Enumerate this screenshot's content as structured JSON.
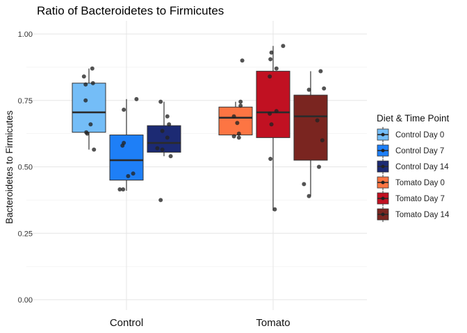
{
  "chart_data": {
    "type": "box",
    "title": "Ratio of Bacteroidetes to Firmicutes",
    "xlabel": "",
    "ylabel": "Bacteroidetes to Firmicutes",
    "categories": [
      "Control",
      "Tomato"
    ],
    "ylim": [
      -0.03,
      1.04
    ],
    "yticks": [
      0.0,
      0.25,
      0.5,
      0.75,
      1.0
    ],
    "ytick_labels": [
      "0.00",
      "0.25",
      "0.50",
      "0.75",
      "1.00"
    ],
    "grid": true,
    "legend": {
      "title": "Diet & Time Point",
      "position": "right"
    },
    "series": [
      {
        "name": "Control Day 0",
        "category": "Control",
        "slot": 0,
        "color": "#74bdf7",
        "q1": 0.63,
        "median": 0.705,
        "q3": 0.815,
        "whisker_low": 0.565,
        "whisker_high": 0.87,
        "points": [
          [
            0.1,
            0.87
          ],
          [
            -0.15,
            0.84
          ],
          [
            -0.1,
            0.81
          ],
          [
            0.12,
            0.815
          ],
          [
            -0.1,
            0.75
          ],
          [
            0.05,
            0.66
          ],
          [
            -0.08,
            0.63
          ],
          [
            -0.05,
            0.625
          ],
          [
            0.15,
            0.565
          ]
        ]
      },
      {
        "name": "Control Day 7",
        "category": "Control",
        "slot": 1,
        "color": "#1e7ff7",
        "q1": 0.45,
        "median": 0.525,
        "q3": 0.62,
        "whisker_low": 0.41,
        "whisker_high": 0.755,
        "points": [
          [
            0.3,
            0.755
          ],
          [
            -0.08,
            0.715
          ],
          [
            -0.08,
            0.59
          ],
          [
            -0.12,
            0.58
          ],
          [
            0.2,
            0.475
          ],
          [
            0.05,
            0.465
          ],
          [
            -0.2,
            0.415
          ],
          [
            -0.1,
            0.415
          ]
        ]
      },
      {
        "name": "Control Day 14",
        "category": "Control",
        "slot": 2,
        "color": "#1c2a73",
        "q1": 0.555,
        "median": 0.59,
        "q3": 0.655,
        "whisker_low": 0.54,
        "whisker_high": 0.745,
        "points": [
          [
            -0.1,
            0.745
          ],
          [
            0.1,
            0.69
          ],
          [
            0.15,
            0.66
          ],
          [
            -0.05,
            0.635
          ],
          [
            0.1,
            0.61
          ],
          [
            -0.2,
            0.57
          ],
          [
            -0.05,
            0.565
          ],
          [
            0.2,
            0.54
          ],
          [
            -0.1,
            0.375
          ]
        ]
      },
      {
        "name": "Tomato Day 0",
        "category": "Tomato",
        "slot": 0,
        "color": "#fd7543",
        "q1": 0.62,
        "median": 0.685,
        "q3": 0.725,
        "whisker_low": 0.615,
        "whisker_high": 0.745,
        "points": [
          [
            0.2,
            0.9
          ],
          [
            0.15,
            0.745
          ],
          [
            0.15,
            0.73
          ],
          [
            -0.05,
            0.69
          ],
          [
            0.05,
            0.665
          ],
          [
            0.1,
            0.625
          ],
          [
            -0.05,
            0.615
          ],
          [
            0.1,
            0.61
          ]
        ]
      },
      {
        "name": "Tomato Day 7",
        "category": "Tomato",
        "slot": 1,
        "color": "#c11122",
        "q1": 0.61,
        "median": 0.705,
        "q3": 0.86,
        "whisker_low": 0.335,
        "whisker_high": 0.955,
        "points": [
          [
            0.3,
            0.955
          ],
          [
            -0.05,
            0.93
          ],
          [
            -0.08,
            0.905
          ],
          [
            0.1,
            0.87
          ],
          [
            -0.1,
            0.84
          ],
          [
            0.1,
            0.71
          ],
          [
            -0.1,
            0.7
          ],
          [
            -0.05,
            0.66
          ],
          [
            -0.08,
            0.53
          ],
          [
            0.05,
            0.34
          ]
        ]
      },
      {
        "name": "Tomato Day 14",
        "category": "Tomato",
        "slot": 2,
        "color": "#7a2520",
        "q1": 0.525,
        "median": 0.69,
        "q3": 0.77,
        "whisker_low": 0.39,
        "whisker_high": 0.86,
        "points": [
          [
            0.3,
            0.86
          ],
          [
            0.4,
            0.795
          ],
          [
            -0.05,
            0.79
          ],
          [
            0.2,
            0.675
          ],
          [
            0.35,
            0.6
          ],
          [
            0.25,
            0.5
          ],
          [
            -0.2,
            0.435
          ],
          [
            -0.05,
            0.39
          ]
        ]
      }
    ]
  }
}
